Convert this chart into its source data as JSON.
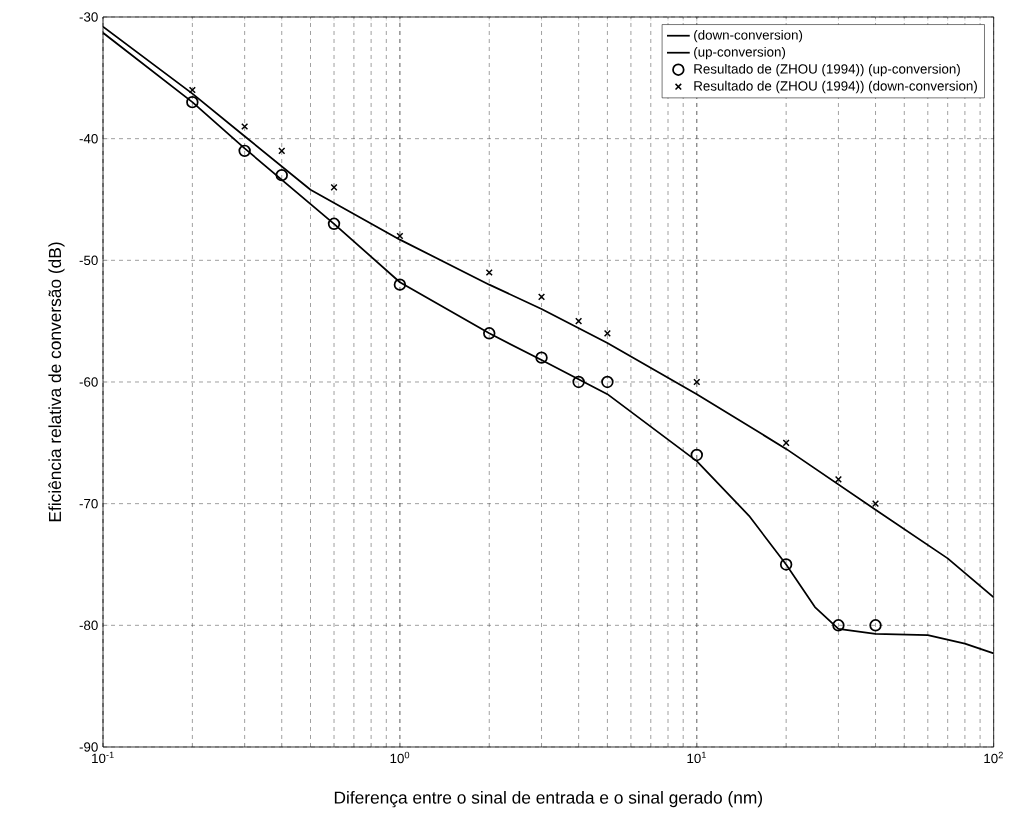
{
  "chart_data": {
    "type": "line",
    "xlabel": "Diferença entre o sinal de entrada e o sinal gerado (nm)",
    "ylabel": "Eficiência relativa de conversão (dB)",
    "log": "x",
    "grid": true,
    "legend": "top right",
    "xlim": [
      0.1,
      100
    ],
    "ylim": [
      -90,
      -30
    ],
    "xticks": [
      {
        "value": 0.1,
        "label": "10$^{-1}$"
      },
      {
        "value": 1,
        "label": "10$^{0}$"
      },
      {
        "value": 10,
        "label": "10$^{1}$"
      },
      {
        "value": 100,
        "label": "10$^{2}$"
      }
    ],
    "yticks": [
      -90,
      -80,
      -70,
      -60,
      -50,
      -40,
      -30
    ],
    "series": [
      {
        "name": "(down-conversion)",
        "color": "#000000",
        "marker": "none",
        "x": [
          0.1,
          0.2,
          0.3,
          0.5,
          1,
          2,
          3,
          5,
          10,
          20,
          40,
          70,
          100
        ],
        "values": [
          -30.8,
          -36.3,
          -39.8,
          -44.2,
          -48.3,
          -52,
          -54,
          -56.8,
          -61,
          -65.5,
          -70.5,
          -74.5,
          -77.7
        ]
      },
      {
        "name": "(up-conversion)",
        "color": "#000000",
        "marker": "none",
        "x": [
          0.1,
          0.2,
          0.3,
          0.6,
          1,
          2,
          3,
          5,
          10,
          15,
          20,
          25,
          30,
          40,
          60,
          80,
          100
        ],
        "values": [
          -31.3,
          -37,
          -40.8,
          -47,
          -51.8,
          -56,
          -58.2,
          -61,
          -66.5,
          -71,
          -75,
          -78.5,
          -80.3,
          -80.7,
          -80.8,
          -81.5,
          -82.3
        ]
      },
      {
        "name": "Resultado de (ZHOU (1994)) (up-conversion)",
        "type": "scatter",
        "color": "#000000",
        "marker": "circle",
        "x": [
          0.2,
          0.3,
          0.4,
          0.6,
          1,
          2,
          3,
          4,
          5,
          10,
          20,
          30,
          40
        ],
        "values": [
          -37,
          -41,
          -43,
          -47,
          -52,
          -56,
          -58,
          -60,
          -60,
          -66,
          -75,
          -80,
          -80
        ]
      },
      {
        "name": "Resultado de (ZHOU (1994)) (down-conversion)",
        "type": "scatter",
        "color": "#000000",
        "marker": "cross",
        "x": [
          0.2,
          0.3,
          0.4,
          0.6,
          1,
          2,
          3,
          4,
          5,
          10,
          20,
          30,
          40
        ],
        "values": [
          -36,
          -39,
          -41,
          -44,
          -48,
          -51,
          -53,
          -55,
          -56,
          -60,
          -65,
          -68,
          -70
        ]
      }
    ]
  }
}
